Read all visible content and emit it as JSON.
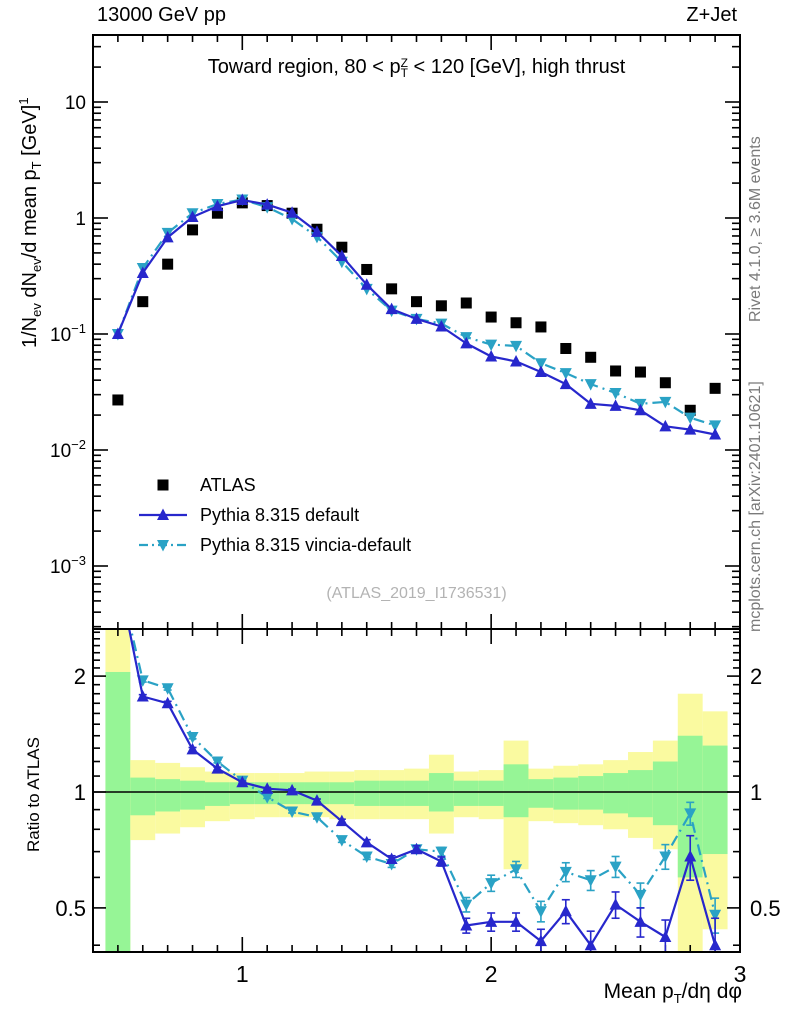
{
  "header": {
    "left": "13000 GeV pp",
    "right": "Z+Jet"
  },
  "title": {
    "pre": "Toward region, 80 < p",
    "sup": "Z",
    "sub": "T",
    "post": " < 120 [GeV], high thrust"
  },
  "ylabel": {
    "n1": "1/N",
    "s1": "ev",
    "n2": " dN",
    "s2": "ev",
    "n3": "/d mean p",
    "s3": "T",
    "n4": " [GeV]",
    "e": "1"
  },
  "ratio_ylabel": "Ratio to ATLAS",
  "xlabel": {
    "n1": "Mean p",
    "s1": "T",
    "n2": "/dη dφ"
  },
  "watermark": "(ATLAS_2019_I1736531)",
  "side_notes": {
    "top_right": "Rivet 4.1.0, ≥ 3.6M events",
    "bottom_right": "mcplots.cern.ch [arXiv:2401.10621]"
  },
  "legend": [
    {
      "label": "ATLAS",
      "marker": "square",
      "color": "#000000",
      "line": "none"
    },
    {
      "label": "Pythia 8.315 default",
      "marker": "triangle-up",
      "color": "#2727cc",
      "line": "solid"
    },
    {
      "label": "Pythia 8.315 vincia-default",
      "marker": "triangle-down",
      "color": "#2aa2c5",
      "line": "dashdot"
    }
  ],
  "chart_data": {
    "type": "line",
    "title": "Toward region, 80 < pT(Z) < 120 [GeV], high thrust",
    "xlabel": "Mean pT/deta dphi",
    "ylabel": "1/Nev dNev/d mean pT [GeV]1",
    "x": [
      0.5,
      0.6,
      0.7,
      0.8,
      0.9,
      1.0,
      1.1,
      1.2,
      1.3,
      1.4,
      1.5,
      1.6,
      1.7,
      1.8,
      1.9,
      2.0,
      2.1,
      2.2,
      2.3,
      2.4,
      2.5,
      2.6,
      2.7,
      2.8,
      2.9
    ],
    "series": [
      {
        "name": "ATLAS",
        "panel": "main",
        "marker": "square",
        "color": "#000000",
        "line": "none",
        "values": [
          0.027,
          0.19,
          0.4,
          0.79,
          1.1,
          1.35,
          1.28,
          1.1,
          0.8,
          0.56,
          0.36,
          0.245,
          0.19,
          0.175,
          0.185,
          0.14,
          0.125,
          0.115,
          0.075,
          0.063,
          0.048,
          0.047,
          0.038,
          0.022,
          0.034
        ]
      },
      {
        "name": "Pythia 8.315 vincia-default",
        "panel": "main",
        "marker": "triangle-down",
        "color": "#2aa2c5",
        "line": "dashdot",
        "values": [
          0.1,
          0.371,
          0.744,
          1.1,
          1.32,
          1.445,
          1.24,
          0.98,
          0.688,
          0.42,
          0.245,
          0.159,
          0.135,
          0.123,
          0.094,
          0.081,
          0.079,
          0.056,
          0.046,
          0.037,
          0.031,
          0.025,
          0.026,
          0.019,
          0.0163
        ]
      },
      {
        "name": "Pythia 8.315 default",
        "panel": "main",
        "marker": "triangle-up",
        "color": "#2727cc",
        "line": "solid",
        "values": [
          0.1,
          0.336,
          0.68,
          1.02,
          1.265,
          1.43,
          1.305,
          1.11,
          0.76,
          0.47,
          0.266,
          0.164,
          0.135,
          0.116,
          0.083,
          0.064,
          0.058,
          0.047,
          0.037,
          0.025,
          0.024,
          0.022,
          0.016,
          0.015,
          0.0136
        ]
      },
      {
        "name": "Pythia 8.315 vincia-default (ratio)",
        "panel": "ratio",
        "marker": "triangle-down",
        "color": "#2aa2c5",
        "line": "dashdot",
        "values": [
          3.7,
          1.95,
          1.86,
          1.39,
          1.2,
          1.07,
          0.97,
          0.89,
          0.86,
          0.75,
          0.68,
          0.65,
          0.71,
          0.7,
          0.51,
          0.58,
          0.63,
          0.49,
          0.62,
          0.59,
          0.64,
          0.54,
          0.68,
          0.88,
          0.48
        ],
        "errors": [
          0,
          0.02,
          0.02,
          0.015,
          0.01,
          0.008,
          0.008,
          0.008,
          0.009,
          0.01,
          0.012,
          0.013,
          0.015,
          0.018,
          0.022,
          0.028,
          0.03,
          0.03,
          0.035,
          0.035,
          0.04,
          0.04,
          0.05,
          0.06,
          0.05
        ]
      },
      {
        "name": "Pythia 8.315 default (ratio)",
        "panel": "ratio",
        "marker": "triangle-up",
        "color": "#2727cc",
        "line": "solid",
        "values": [
          3.7,
          1.77,
          1.7,
          1.29,
          1.15,
          1.06,
          1.02,
          1.01,
          0.95,
          0.84,
          0.74,
          0.67,
          0.71,
          0.66,
          0.45,
          0.46,
          0.46,
          0.41,
          0.49,
          0.4,
          0.51,
          0.46,
          0.42,
          0.68,
          0.4
        ],
        "errors": [
          0,
          0.02,
          0.02,
          0.015,
          0.01,
          0.008,
          0.008,
          0.008,
          0.009,
          0.01,
          0.012,
          0.013,
          0.015,
          0.018,
          0.02,
          0.025,
          0.025,
          0.03,
          0.035,
          0.035,
          0.04,
          0.04,
          0.045,
          0.09,
          0.07
        ]
      }
    ],
    "bands": {
      "color_outer": "#fafaa0",
      "color_inner": "#96f596",
      "bins": [
        {
          "x": 0.5,
          "outer": [
            0.33,
            2.65
          ],
          "inner": [
            0.33,
            2.05
          ]
        },
        {
          "x": 0.6,
          "outer": [
            0.75,
            1.21
          ],
          "inner": [
            0.87,
            1.09
          ]
        },
        {
          "x": 0.7,
          "outer": [
            0.78,
            1.19
          ],
          "inner": [
            0.89,
            1.08
          ]
        },
        {
          "x": 0.8,
          "outer": [
            0.81,
            1.16
          ],
          "inner": [
            0.9,
            1.07
          ]
        },
        {
          "x": 0.9,
          "outer": [
            0.84,
            1.13
          ],
          "inner": [
            0.92,
            1.06
          ]
        },
        {
          "x": 1.0,
          "outer": [
            0.85,
            1.12
          ],
          "inner": [
            0.93,
            1.06
          ]
        },
        {
          "x": 1.1,
          "outer": [
            0.86,
            1.12
          ],
          "inner": [
            0.93,
            1.06
          ]
        },
        {
          "x": 1.2,
          "outer": [
            0.86,
            1.12
          ],
          "inner": [
            0.93,
            1.06
          ]
        },
        {
          "x": 1.3,
          "outer": [
            0.86,
            1.13
          ],
          "inner": [
            0.93,
            1.06
          ]
        },
        {
          "x": 1.4,
          "outer": [
            0.85,
            1.13
          ],
          "inner": [
            0.93,
            1.06
          ]
        },
        {
          "x": 1.5,
          "outer": [
            0.85,
            1.14
          ],
          "inner": [
            0.92,
            1.07
          ]
        },
        {
          "x": 1.6,
          "outer": [
            0.85,
            1.14
          ],
          "inner": [
            0.92,
            1.07
          ]
        },
        {
          "x": 1.7,
          "outer": [
            0.85,
            1.15
          ],
          "inner": [
            0.92,
            1.07
          ]
        },
        {
          "x": 1.8,
          "outer": [
            0.78,
            1.25
          ],
          "inner": [
            0.89,
            1.12
          ]
        },
        {
          "x": 1.9,
          "outer": [
            0.86,
            1.13
          ],
          "inner": [
            0.92,
            1.07
          ]
        },
        {
          "x": 2.0,
          "outer": [
            0.85,
            1.14
          ],
          "inner": [
            0.92,
            1.07
          ]
        },
        {
          "x": 2.1,
          "outer": [
            0.63,
            1.36
          ],
          "inner": [
            0.86,
            1.18
          ]
        },
        {
          "x": 2.2,
          "outer": [
            0.84,
            1.15
          ],
          "inner": [
            0.91,
            1.08
          ]
        },
        {
          "x": 2.3,
          "outer": [
            0.83,
            1.17
          ],
          "inner": [
            0.9,
            1.09
          ]
        },
        {
          "x": 2.4,
          "outer": [
            0.82,
            1.18
          ],
          "inner": [
            0.9,
            1.1
          ]
        },
        {
          "x": 2.5,
          "outer": [
            0.8,
            1.21
          ],
          "inner": [
            0.88,
            1.12
          ]
        },
        {
          "x": 2.6,
          "outer": [
            0.76,
            1.27
          ],
          "inner": [
            0.86,
            1.14
          ]
        },
        {
          "x": 2.7,
          "outer": [
            0.71,
            1.36
          ],
          "inner": [
            0.82,
            1.2
          ]
        },
        {
          "x": 2.8,
          "outer": [
            0.34,
            1.8
          ],
          "inner": [
            0.6,
            1.4
          ]
        },
        {
          "x": 2.9,
          "outer": [
            0.44,
            1.62
          ],
          "inner": [
            0.69,
            1.32
          ]
        }
      ]
    },
    "axes": {
      "x": {
        "min": 0.4,
        "max": 3.0,
        "ticks": [
          "1",
          "2",
          "3"
        ],
        "tick_values": [
          1,
          2,
          3
        ],
        "minor_step": 0.1
      },
      "y_main": {
        "scale": "log",
        "min": 0.0003,
        "max": 38,
        "ticks": [
          {
            "v": 10,
            "base": "10",
            "exp": ""
          },
          {
            "v": 1,
            "base": "1",
            "exp": ""
          },
          {
            "v": 0.1,
            "base": "10",
            "exp": "−1"
          },
          {
            "v": 0.01,
            "base": "10",
            "exp": "−2"
          },
          {
            "v": 0.001,
            "base": "10",
            "exp": "−3"
          }
        ]
      },
      "y_ratio": {
        "scale": "log",
        "min": 0.384,
        "max": 2.65,
        "ref_line": 1,
        "ticks": [
          {
            "v": 2,
            "t": "2"
          },
          {
            "v": 1,
            "t": "1"
          },
          {
            "v": 0.5,
            "t": "0.5"
          }
        ]
      }
    }
  }
}
